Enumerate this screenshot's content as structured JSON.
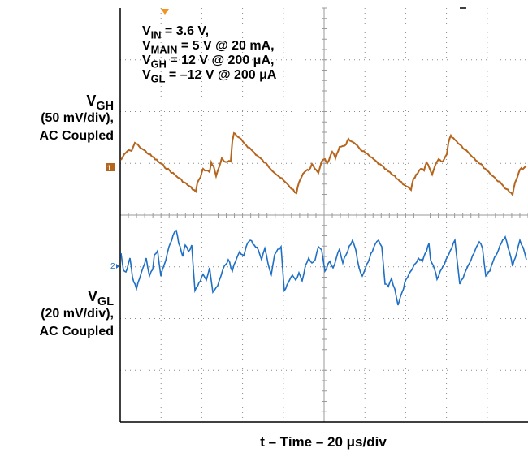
{
  "chart_data": {
    "type": "line",
    "x_axis": {
      "label": "t – Time – 20 μs/div"
    },
    "conditions": [
      {
        "sym": "V",
        "sub": "IN",
        "text": " = 3.6 V,"
      },
      {
        "sym": "V",
        "sub": "MAIN",
        "text": " = 5 V @ 20 mA,"
      },
      {
        "sym": "V",
        "sub": "GH",
        "text": " = 12 V @ 200 μA,"
      },
      {
        "sym": "V",
        "sub": "GL",
        "text": " = –12 V @ 200 μA"
      }
    ],
    "channels": [
      {
        "sym": "V",
        "sub": "GH",
        "scale": "(50 mV/div),",
        "coupling": "AC Coupled",
        "color": "#b5651d",
        "marker": "1",
        "waveform": "sawtooth"
      },
      {
        "sym": "V",
        "sub": "GL",
        "scale": "(20 mV/div),",
        "coupling": "AC Coupled",
        "color": "#1f6fc5",
        "marker": "2",
        "waveform": "sawtooth"
      }
    ],
    "grid": true
  },
  "colors": {
    "ch1": "#b5651d",
    "ch2": "#1f6fc5",
    "trigger": "#f29422"
  }
}
